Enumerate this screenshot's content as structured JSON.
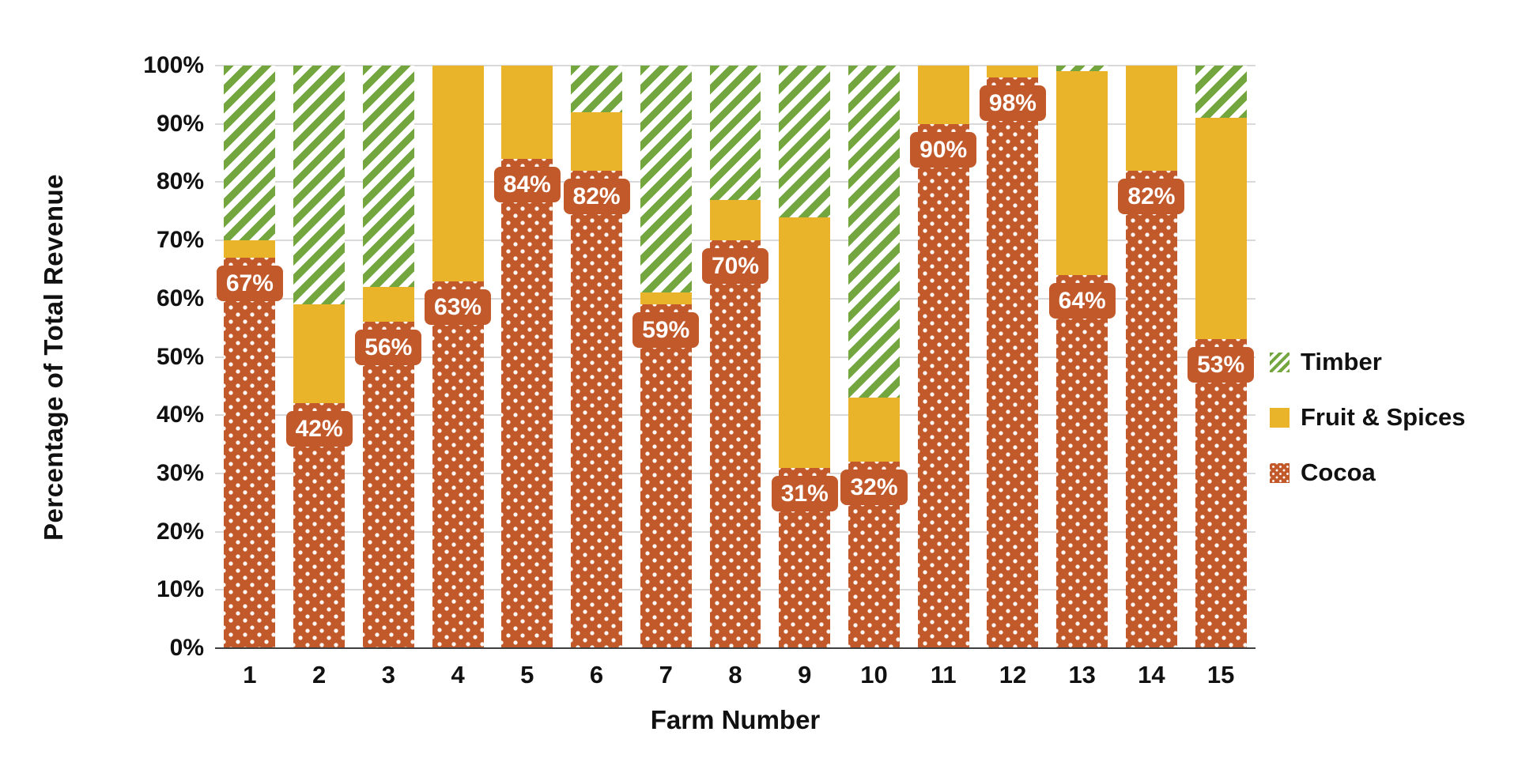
{
  "chart_data": {
    "type": "bar",
    "variant": "stacked-100-percent",
    "title": "",
    "xlabel": "Farm Number",
    "ylabel": "Percentage of Total Revenue",
    "ylim": [
      0,
      100
    ],
    "grid": "horizontal",
    "ytick_labels": [
      "0%",
      "10%",
      "20%",
      "30%",
      "40%",
      "50%",
      "60%",
      "70%",
      "80%",
      "90%",
      "100%"
    ],
    "categories": [
      "1",
      "2",
      "3",
      "4",
      "5",
      "6",
      "7",
      "8",
      "9",
      "10",
      "11",
      "12",
      "13",
      "14",
      "15"
    ],
    "series": [
      {
        "name": "Cocoa",
        "color": "#c2592a",
        "pattern": "dots",
        "values": [
          67,
          42,
          56,
          63,
          84,
          82,
          59,
          70,
          31,
          32,
          90,
          98,
          64,
          82,
          53
        ]
      },
      {
        "name": "Fruit  & Spices",
        "color": "#e9b32a",
        "pattern": "solid",
        "values": [
          3,
          17,
          6,
          37,
          16,
          10,
          2,
          7,
          43,
          11,
          10,
          2,
          35,
          18,
          38
        ]
      },
      {
        "name": "Timber",
        "color": "#74a63f",
        "pattern": "hatch",
        "values": [
          30,
          41,
          38,
          0,
          0,
          8,
          39,
          23,
          26,
          57,
          0,
          0,
          1,
          0,
          9
        ]
      }
    ],
    "data_labels": {
      "series": "Cocoa",
      "values": [
        "67%",
        "42%",
        "56%",
        "63%",
        "84%",
        "82%",
        "59%",
        "70%",
        "31%",
        "32%",
        "90%",
        "98%",
        "64%",
        "82%",
        "53%"
      ]
    },
    "legend": {
      "position": "right",
      "items": [
        "Timber",
        "Fruit  & Spices",
        "Cocoa"
      ]
    },
    "colors": {
      "cocoa": "#c2592a",
      "fruit_spices": "#e9b32a",
      "timber": "#74a63f",
      "gridline": "#d9d9d9",
      "axis_line": "#3f3f3f",
      "axis_text": "#111111",
      "bar_label_text": "#ffffff"
    }
  }
}
